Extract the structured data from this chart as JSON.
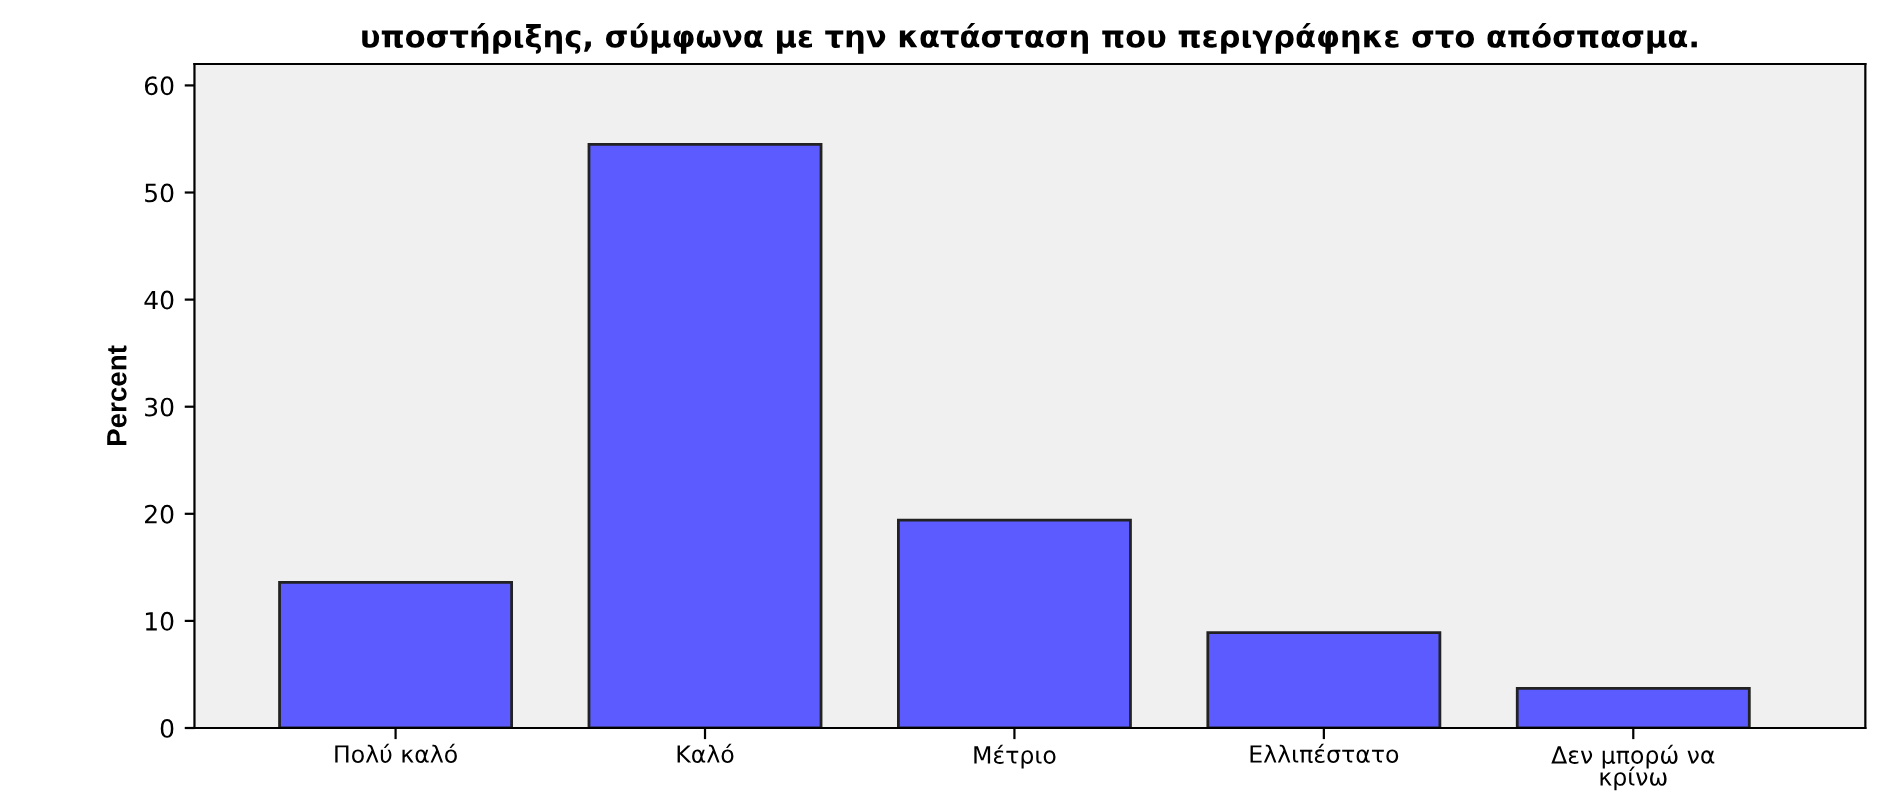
{
  "chart_data": {
    "type": "bar",
    "title": "υποστήριξης, σύμφωνα με την κατάσταση που περιγράφηκε στο απόσπασμα.",
    "ylabel": "Percent",
    "categories": [
      "Πολύ καλό",
      "Καλό",
      "Μέτριο",
      "Ελλιπέστατο",
      "Δεν μπορώ να\nκρίνω"
    ],
    "values": [
      13.6,
      54.5,
      19.4,
      8.9,
      3.7
    ],
    "color": "#5b5bff",
    "ylim": [
      0,
      62
    ],
    "yticks": [
      0,
      10,
      20,
      30,
      40,
      50,
      60
    ],
    "grid": false
  }
}
